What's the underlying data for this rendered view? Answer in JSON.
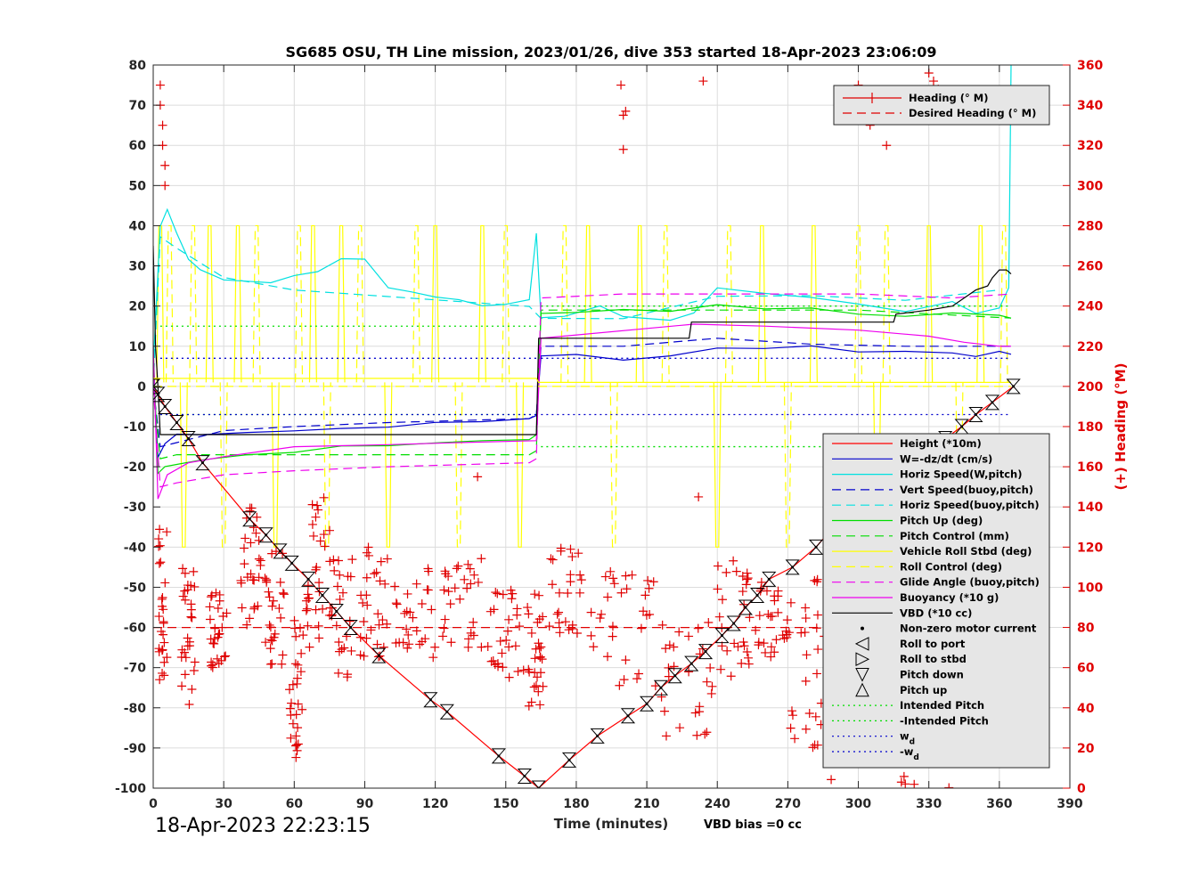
{
  "colors": {
    "axis": "#262626",
    "grid": "#dcdcdc",
    "right_axis": "#e00000",
    "legend_bg": "#e6e6e6"
  },
  "footer": {
    "timestamp": "18-Apr-2023 22:23:15",
    "vbd_bias": "VBD bias =0 cc"
  },
  "chart_data": {
    "type": "line",
    "title": "SG685 OSU, TH Line mission, 2023/01/26, dive 353 started 18-Apr-2023 23:06:09",
    "xlabel": "Time (minutes)",
    "ylabel": "",
    "y2label": "(+) Heading (°M)",
    "xlim": [
      0,
      390
    ],
    "ylim": [
      -100,
      80
    ],
    "y2lim": [
      0,
      360
    ],
    "grid": true,
    "x_ticks": [
      0,
      30,
      60,
      90,
      120,
      150,
      180,
      210,
      240,
      270,
      300,
      330,
      360,
      390
    ],
    "y_ticks": [
      -100,
      -90,
      -80,
      -70,
      -60,
      -50,
      -40,
      -30,
      -20,
      -10,
      0,
      10,
      20,
      30,
      40,
      50,
      60,
      70,
      80
    ],
    "y2_ticks": [
      0,
      20,
      40,
      60,
      80,
      100,
      120,
      140,
      160,
      180,
      200,
      220,
      240,
      260,
      280,
      300,
      320,
      340,
      360
    ],
    "legend_top": {
      "placement": "top-right",
      "entries": [
        {
          "label": "Heading (° M)",
          "color": "#e00000",
          "marker": "+"
        },
        {
          "label": "Desired Heading (° M)",
          "color": "#e00000",
          "style": "dash"
        }
      ]
    },
    "legend_main": {
      "placement": "right",
      "entries": [
        {
          "label": "Height (*10m)",
          "color": "#ff0000",
          "style": "solid"
        },
        {
          "label": "W=-dz/dt (cm/s)",
          "color": "#0000cc",
          "style": "solid"
        },
        {
          "label": "Horiz Speed(W,pitch)",
          "color": "#00e0e0",
          "style": "solid"
        },
        {
          "label": "Vert Speed(buoy,pitch)",
          "color": "#0000cc",
          "style": "dash"
        },
        {
          "label": "Horiz Speed(buoy,pitch)",
          "color": "#00e0e0",
          "style": "dash"
        },
        {
          "label": "Pitch Up (deg)",
          "color": "#00dd00",
          "style": "solid"
        },
        {
          "label": "Pitch Control (mm)",
          "color": "#00dd00",
          "style": "dash"
        },
        {
          "label": "Vehicle Roll Stbd (deg)",
          "color": "#ffff00",
          "style": "solid"
        },
        {
          "label": "Roll Control (deg)",
          "color": "#ffff00",
          "style": "dash"
        },
        {
          "label": "Glide Angle (buoy,pitch)",
          "color": "#ee00ee",
          "style": "dash"
        },
        {
          "label": "Buoyancy (*10 g)",
          "color": "#ee00ee",
          "style": "solid"
        },
        {
          "label": "VBD (*10 cc)",
          "color": "#000000",
          "style": "solid"
        },
        {
          "label": "Non-zero motor current",
          "color": "#000000",
          "marker": "dot"
        },
        {
          "label": "Roll to port",
          "color": "#000000",
          "marker": "tri-left"
        },
        {
          "label": "Roll to stbd",
          "color": "#000000",
          "marker": "tri-right"
        },
        {
          "label": "Pitch down",
          "color": "#000000",
          "marker": "tri-down"
        },
        {
          "label": "Pitch up",
          "color": "#000000",
          "marker": "tri-up"
        },
        {
          "label": "Intended Pitch",
          "color": "#00dd00",
          "style": "dot"
        },
        {
          "label": "-Intended Pitch",
          "color": "#00dd00",
          "style": "dot"
        },
        {
          "label": "w",
          "sub": "d",
          "color": "#0000cc",
          "style": "dot"
        },
        {
          "label": "-w",
          "sub": "d",
          "color": "#0000cc",
          "style": "dot"
        }
      ]
    },
    "series": [
      {
        "name": "Height (*10m)",
        "color": "#ff0000",
        "style": "solid",
        "x": [
          0,
          2,
          5,
          10,
          15,
          21,
          41,
          48,
          54,
          59,
          66,
          72,
          78,
          84,
          96,
          118,
          125,
          147,
          158,
          164,
          177,
          189,
          202,
          210,
          216,
          222,
          229,
          235,
          242,
          247,
          252,
          257,
          262,
          272,
          282,
          291,
          303,
          312,
          318,
          325,
          337,
          344,
          350,
          357,
          366
        ],
        "y": [
          0,
          -2,
          -5,
          -9,
          -13,
          -19,
          -33,
          -37,
          -41,
          -44,
          -48,
          -52,
          -56,
          -60,
          -67,
          -78,
          -81,
          -92,
          -97,
          -100,
          -93,
          -87,
          -82,
          -79,
          -75,
          -72,
          -69,
          -66,
          -62,
          -59,
          -55,
          -52,
          -48,
          -45,
          -40,
          -34,
          -28,
          -24,
          -21,
          -17,
          -13,
          -10,
          -7,
          -4,
          0
        ]
      },
      {
        "name": "W=-dz/dt (cm/s)",
        "color": "#0000cc",
        "style": "solid",
        "x": [
          0,
          2,
          5,
          10,
          20,
          40,
          60,
          80,
          100,
          120,
          140,
          160,
          163,
          165,
          180,
          200,
          220,
          240,
          260,
          280,
          300,
          320,
          340,
          350,
          360,
          365
        ],
        "y": [
          5,
          -18,
          -14,
          -12,
          -12,
          -11,
          -11,
          -10.5,
          -10,
          -9,
          -8.5,
          -8,
          -7,
          8,
          7.5,
          7,
          7.5,
          9,
          9.5,
          9.5,
          9,
          8.5,
          8,
          7,
          9,
          8
        ]
      },
      {
        "name": "Vert Speed(buoy,pitch)",
        "color": "#0000cc",
        "style": "dash",
        "x": [
          0,
          3,
          10,
          30,
          60,
          100,
          160,
          163,
          165,
          200,
          240,
          280,
          320,
          365
        ],
        "y": [
          0,
          -15,
          -14,
          -11,
          -10,
          -9,
          -8,
          -7,
          10,
          10,
          12,
          10.5,
          10,
          10
        ]
      },
      {
        "name": "Horiz Speed(W,pitch)",
        "color": "#00e0e0",
        "style": "solid",
        "x": [
          0,
          3,
          6,
          10,
          15,
          20,
          30,
          40,
          50,
          60,
          70,
          80,
          90,
          100,
          110,
          120,
          130,
          140,
          150,
          160,
          163,
          165,
          175,
          190,
          200,
          220,
          230,
          240,
          260,
          280,
          300,
          320,
          340,
          350,
          360,
          364,
          365
        ],
        "y": [
          5,
          40,
          44,
          38,
          32,
          29,
          27,
          26,
          26,
          28,
          29,
          32,
          32,
          25,
          23,
          22,
          21,
          20,
          21,
          22,
          38,
          17,
          18,
          20,
          17,
          17,
          18,
          25,
          23,
          22,
          20,
          19,
          21,
          18,
          20,
          25,
          80
        ]
      },
      {
        "name": "Horiz Speed(buoy,pitch)",
        "color": "#00e0e0",
        "style": "dash",
        "x": [
          0,
          3,
          10,
          30,
          60,
          100,
          160,
          165,
          200,
          240,
          280,
          320,
          360
        ],
        "y": [
          0,
          37,
          34,
          27,
          24,
          22,
          20,
          17,
          17,
          23,
          22,
          22,
          24
        ]
      },
      {
        "name": "Pitch Up (deg)",
        "color": "#00dd00",
        "style": "solid",
        "x": [
          0,
          2,
          5,
          10,
          20,
          40,
          60,
          80,
          100,
          120,
          140,
          160,
          163,
          165,
          180,
          200,
          220,
          240,
          260,
          280,
          300,
          320,
          340,
          360,
          365
        ],
        "y": [
          10,
          -22,
          -20,
          -19,
          -18,
          -17,
          -16,
          -15,
          -14.5,
          -14,
          -13.5,
          -13,
          -12,
          18.5,
          19,
          19,
          19,
          20,
          19.5,
          19,
          18.5,
          18,
          18,
          18,
          17
        ]
      },
      {
        "name": "Pitch Control (mm)",
        "color": "#00dd00",
        "style": "dash",
        "x": [
          0,
          3,
          10,
          160,
          163,
          165,
          240,
          300,
          365
        ],
        "y": [
          0,
          -18,
          -17,
          -17,
          -16,
          19,
          19,
          19,
          17
        ]
      },
      {
        "name": "Glide Angle (buoy,pitch)",
        "color": "#ee00ee",
        "style": "dash",
        "x": [
          0,
          3,
          10,
          30,
          60,
          100,
          160,
          163,
          165,
          200,
          240,
          300,
          340,
          365
        ],
        "y": [
          0,
          -25,
          -24,
          -22,
          -21,
          -20,
          -19,
          -18,
          22,
          23,
          23,
          23,
          22,
          23
        ]
      },
      {
        "name": "Buoyancy (*10 g)",
        "color": "#ee00ee",
        "style": "solid",
        "x": [
          0,
          2,
          6,
          15,
          30,
          60,
          100,
          130,
          163,
          165,
          230,
          260,
          300,
          330,
          345,
          360,
          365
        ],
        "y": [
          10,
          -28,
          -22,
          -19,
          -17.5,
          -15,
          -14.5,
          -14,
          -13.5,
          12,
          15.5,
          15,
          14,
          12.5,
          11,
          10,
          10
        ]
      },
      {
        "name": "VBD (*10 cc)",
        "color": "#000000",
        "style": "solid",
        "x": [
          0,
          1,
          2,
          3,
          10,
          30,
          60,
          100,
          130,
          163,
          164,
          170,
          200,
          228,
          229,
          260,
          300,
          315,
          316,
          330,
          340,
          345,
          350,
          355,
          357,
          360,
          363,
          365
        ],
        "y": [
          35,
          10,
          0,
          -12,
          -12,
          -12,
          -12,
          -12,
          -12,
          -12,
          12,
          12,
          12,
          12,
          16,
          16,
          16,
          16,
          18,
          19,
          20,
          22,
          24,
          25,
          27,
          29,
          29,
          28
        ]
      },
      {
        "name": "Vehicle Roll Stbd (deg)",
        "color": "#ffff00",
        "style": "solid",
        "x": [
          0,
          10,
          50,
          100,
          150,
          163,
          164,
          200,
          250,
          300,
          350,
          365
        ],
        "y": [
          2,
          2,
          2,
          2,
          2,
          2,
          1,
          1,
          1,
          1,
          1,
          1
        ]
      },
      {
        "name": "Roll Control (deg)",
        "color": "#ffff00",
        "style": "dash",
        "x": [
          0,
          100,
          163,
          200,
          300,
          365
        ],
        "y": [
          0,
          0,
          0,
          0,
          0,
          0
        ]
      },
      {
        "name": "Desired Heading (° M)",
        "color": "#e00000",
        "style": "dash",
        "axis": "right",
        "x": [
          0,
          366
        ],
        "y": [
          80,
          80
        ]
      }
    ],
    "roll_spikes_x": [
      3,
      7,
      13,
      17,
      24,
      30,
      36,
      44,
      52,
      62,
      68,
      74,
      80,
      88,
      100,
      112,
      120,
      130,
      140,
      150,
      156,
      175,
      185,
      196,
      207,
      218,
      240,
      245,
      259,
      270,
      281,
      300,
      308,
      312,
      330,
      343,
      352,
      362
    ],
    "ref_lines": [
      {
        "name": "Intended Pitch",
        "color": "#00dd00",
        "y_left": [
          15,
          15
        ],
        "y_right": [
          20,
          20
        ]
      },
      {
        "name": "-Intended Pitch",
        "color": "#00dd00",
        "y_left": [
          -7,
          -7
        ],
        "y_right": [
          -15,
          -15
        ]
      },
      {
        "name": "w_d",
        "color": "#0000cc",
        "y_left": [
          7,
          7
        ],
        "y_right": [
          7,
          7
        ]
      },
      {
        "name": "-w_d",
        "color": "#0000cc",
        "y_left": [
          -7,
          -7
        ],
        "y_right": [
          -7,
          -7
        ]
      }
    ],
    "heading_clusters": [
      {
        "x": [
          2,
          6
        ],
        "y2": [
          50,
          130
        ]
      },
      {
        "x": [
          12,
          18
        ],
        "y2": [
          40,
          110
        ]
      },
      {
        "x": [
          24,
          32
        ],
        "y2": [
          60,
          100
        ]
      },
      {
        "x": [
          37,
          46
        ],
        "y2": [
          80,
          140
        ]
      },
      {
        "x": [
          47,
          56
        ],
        "y2": [
          60,
          120
        ]
      },
      {
        "x": [
          58,
          64
        ],
        "y2": [
          15,
          85
        ]
      },
      {
        "x": [
          65,
          74
        ],
        "y2": [
          70,
          145
        ]
      },
      {
        "x": [
          75,
          85
        ],
        "y2": [
          50,
          130
        ]
      },
      {
        "x": [
          88,
          100
        ],
        "y2": [
          65,
          120
        ]
      },
      {
        "x": [
          102,
          120
        ],
        "y2": [
          65,
          110
        ]
      },
      {
        "x": [
          122,
          140
        ],
        "y2": [
          70,
          115
        ]
      },
      {
        "x": [
          142,
          158
        ],
        "y2": [
          55,
          100
        ]
      },
      {
        "x": [
          159,
          166
        ],
        "y2": [
          40,
          100
        ]
      },
      {
        "x": [
          168,
          188
        ],
        "y2": [
          70,
          120
        ]
      },
      {
        "x": [
          190,
          214
        ],
        "y2": [
          50,
          110
        ]
      },
      {
        "x": [
          216,
          238
        ],
        "y2": [
          25,
          85
        ]
      },
      {
        "x": [
          240,
          254
        ],
        "y2": [
          55,
          120
        ]
      },
      {
        "x": [
          256,
          270
        ],
        "y2": [
          65,
          105
        ]
      },
      {
        "x": [
          270,
          286
        ],
        "y2": [
          20,
          110
        ]
      },
      {
        "x": [
          288,
          300
        ],
        "y2": [
          0,
          120
        ]
      },
      {
        "x": [
          300,
          316
        ],
        "y2": [
          20,
          120
        ]
      },
      {
        "x": [
          318,
          340
        ],
        "y2": [
          0,
          100
        ]
      },
      {
        "x": [
          342,
          366
        ],
        "y2": [
          50,
          110
        ]
      }
    ],
    "heading_outliers": {
      "x": [
        3,
        3,
        4,
        4,
        5,
        5,
        199,
        200,
        201,
        200,
        234,
        138,
        232,
        300,
        302,
        305,
        310,
        312,
        330,
        332,
        334
      ],
      "y2": [
        350,
        340,
        330,
        320,
        310,
        300,
        350,
        335,
        337,
        318,
        352,
        155,
        145,
        350,
        340,
        330,
        340,
        320,
        356,
        352,
        348
      ]
    },
    "annotations": [
      {
        "text": "Height (*10m)"
      }
    ]
  }
}
